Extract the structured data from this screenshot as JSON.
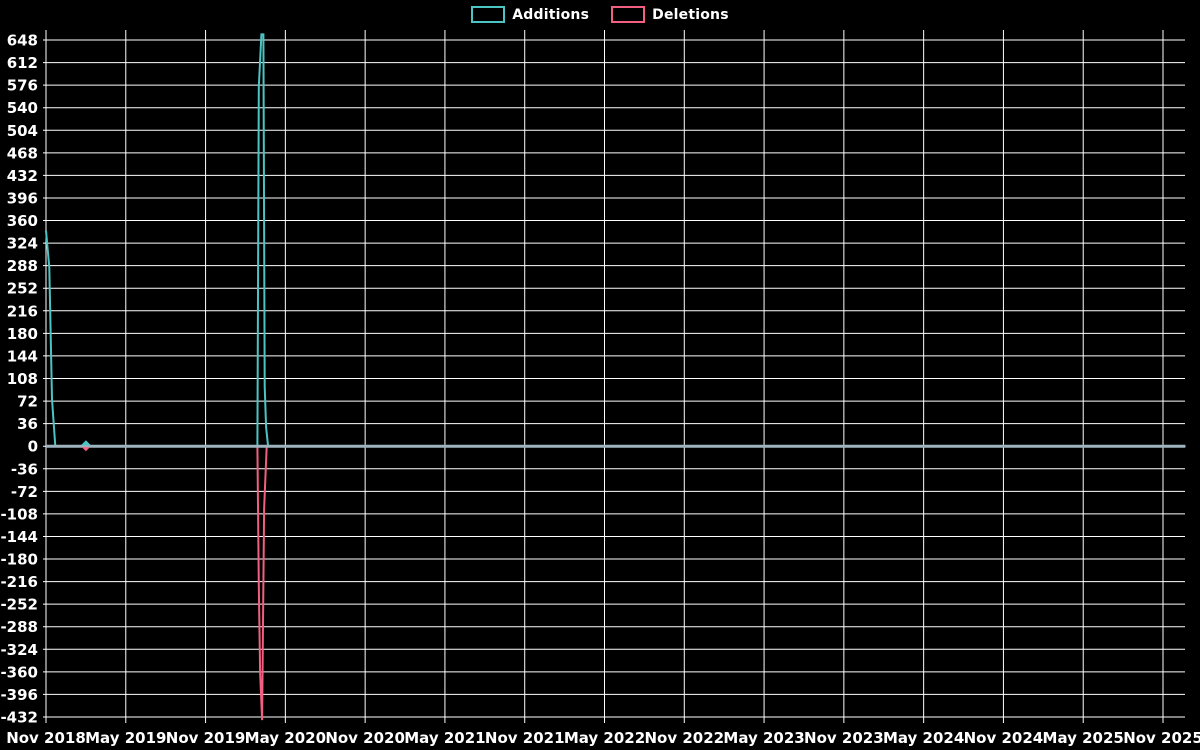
{
  "legend": {
    "items": [
      {
        "label": "Additions",
        "color": "#4cc4c4"
      },
      {
        "label": "Deletions",
        "color": "#f25f80"
      }
    ]
  },
  "chart_data": {
    "type": "line",
    "title": "",
    "xlabel": "",
    "ylabel": "",
    "background_color": "#000000",
    "grid": true,
    "grid_color": "#ffffff",
    "text_color": "#ffffff",
    "zero_line_color": "#9db4bf",
    "legend_position": "top-center",
    "x_unit": "months since Nov 2018",
    "x_tick_months": [
      0,
      6,
      12,
      18,
      24,
      30,
      36,
      42,
      48,
      54,
      60,
      66,
      72,
      78,
      84
    ],
    "x_tick_labels": [
      "Nov 2018",
      "May 2019",
      "Nov 2019",
      "May 2020",
      "Nov 2020",
      "May 2021",
      "Nov 2021",
      "May 2022",
      "Nov 2022",
      "May 2023",
      "Nov 2023",
      "May 2024",
      "Nov 2024",
      "May 2025",
      "Nov 2025"
    ],
    "y_ticks": [
      648,
      612,
      576,
      540,
      504,
      468,
      432,
      396,
      360,
      324,
      288,
      252,
      216,
      180,
      144,
      108,
      72,
      36,
      0,
      -36,
      -72,
      -108,
      -144,
      -180,
      -216,
      -252,
      -288,
      -324,
      -360,
      -396,
      -432
    ],
    "ylim": [
      -432,
      648
    ],
    "xlim_months": [
      0,
      85.7
    ],
    "series": [
      {
        "name": "Additions",
        "color": "#4cc4c4",
        "points": [
          [
            0,
            344
          ],
          [
            0.25,
            285
          ],
          [
            0.45,
            75
          ],
          [
            0.7,
            0
          ],
          [
            3,
            0
          ],
          [
            15.9,
            0
          ],
          [
            16.0,
            573
          ],
          [
            16.2,
            657
          ],
          [
            16.35,
            657
          ],
          [
            16.45,
            95
          ],
          [
            16.55,
            30
          ],
          [
            16.7,
            0
          ],
          [
            85.7,
            0
          ]
        ]
      },
      {
        "name": "Deletions",
        "color": "#f25f80",
        "points": [
          [
            0,
            0
          ],
          [
            15.9,
            0
          ],
          [
            16.0,
            -222
          ],
          [
            16.1,
            -360
          ],
          [
            16.25,
            -437
          ],
          [
            16.4,
            -100
          ],
          [
            16.6,
            0
          ],
          [
            85.7,
            0
          ]
        ]
      }
    ],
    "markers": [
      {
        "series": "Additions",
        "month": 3,
        "value": 0,
        "shape": "triangle-up",
        "color": "#4cc4c4"
      },
      {
        "series": "Deletions",
        "month": 3,
        "value": 0,
        "shape": "triangle-down",
        "color": "#f25f80"
      }
    ]
  }
}
